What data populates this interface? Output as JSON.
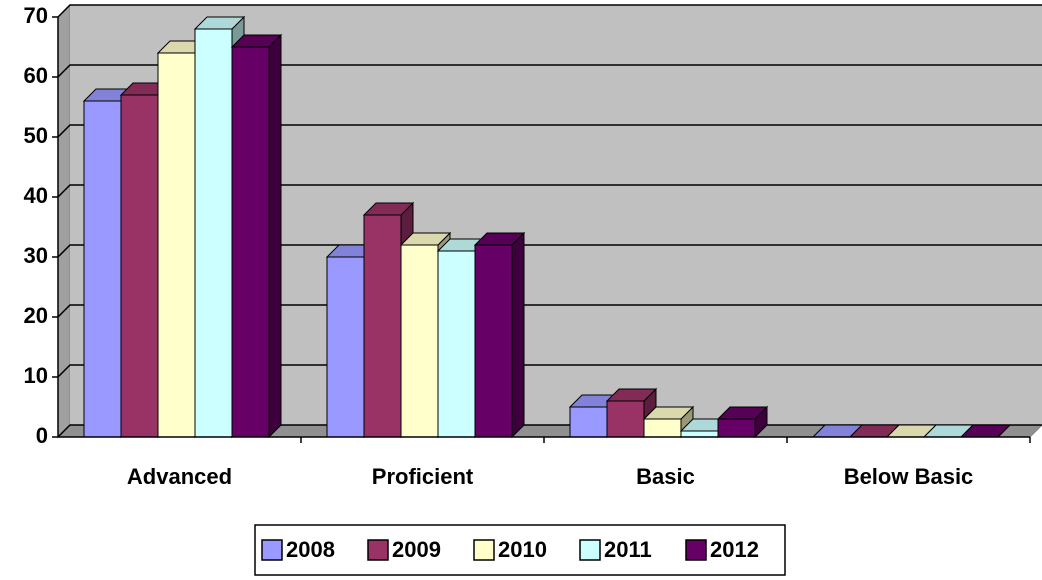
{
  "chart_data": {
    "type": "bar3d",
    "categories": [
      "Advanced",
      "Proficient",
      "Basic",
      "Below Basic"
    ],
    "series": [
      {
        "name": "2008",
        "color": "#9999ff",
        "values": [
          56,
          30,
          5,
          0
        ]
      },
      {
        "name": "2009",
        "color": "#993366",
        "values": [
          57,
          37,
          6,
          0
        ]
      },
      {
        "name": "2010",
        "color": "#ffffcc",
        "values": [
          64,
          32,
          3,
          0
        ]
      },
      {
        "name": "2011",
        "color": "#ccffff",
        "values": [
          68,
          31,
          1,
          0
        ]
      },
      {
        "name": "2012",
        "color": "#660066",
        "values": [
          65,
          32,
          3,
          0
        ]
      }
    ],
    "ylim": [
      0,
      70
    ],
    "yticks": [
      0,
      10,
      20,
      30,
      40,
      50,
      60,
      70
    ],
    "grid": true,
    "legend": "bottom"
  }
}
